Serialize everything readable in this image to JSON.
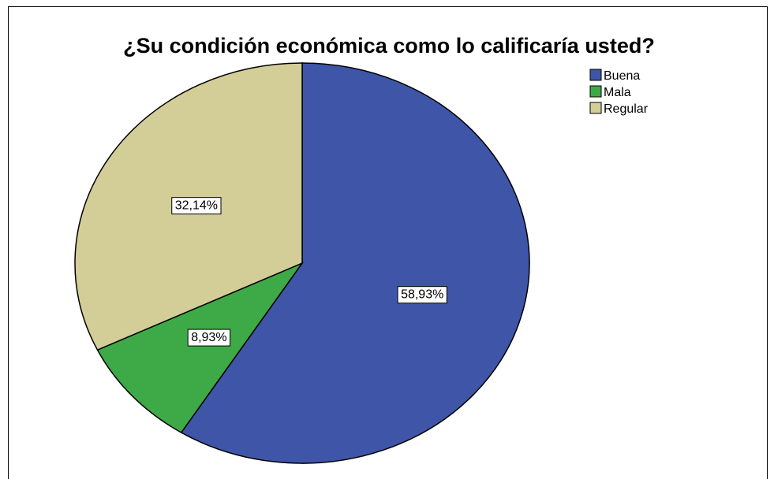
{
  "chart_data": {
    "type": "pie",
    "title": "¿Su condición económica como lo calificaría usted?",
    "slices": [
      {
        "name": "Buena",
        "value": 58.93,
        "label": "58,93%",
        "color": "#3f55a8"
      },
      {
        "name": "Mala",
        "value": 8.93,
        "label": "8,93%",
        "color": "#3daa47"
      },
      {
        "name": "Regular",
        "value": 32.14,
        "label": "32,14%",
        "color": "#d3cd97"
      }
    ],
    "start_angle_deg": 0,
    "direction": "clockwise",
    "legend_position": "top-right"
  }
}
